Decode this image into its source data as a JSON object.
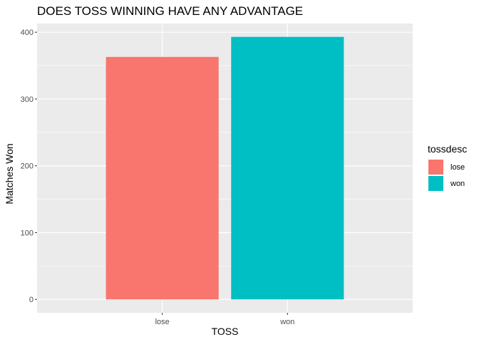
{
  "chart_data": {
    "type": "bar",
    "title": "DOES TOSS WINNING HAVE ANY ADVANTAGE",
    "xlabel": "TOSS",
    "ylabel": "Matches Won",
    "categories": [
      "lose",
      "won"
    ],
    "values": [
      363,
      393
    ],
    "ylim": [
      -20,
      413
    ],
    "yticks": [
      0,
      100,
      200,
      300,
      400
    ],
    "ytick_labels": [
      "0",
      "100",
      "200",
      "300",
      "400"
    ],
    "grid": true,
    "panel_background": "#EBEBEB",
    "colors": [
      "#F8766D",
      "#00BFC4"
    ],
    "legend": {
      "title": "tossdesc",
      "placement": "right",
      "entries": [
        "lose",
        "won"
      ]
    }
  }
}
